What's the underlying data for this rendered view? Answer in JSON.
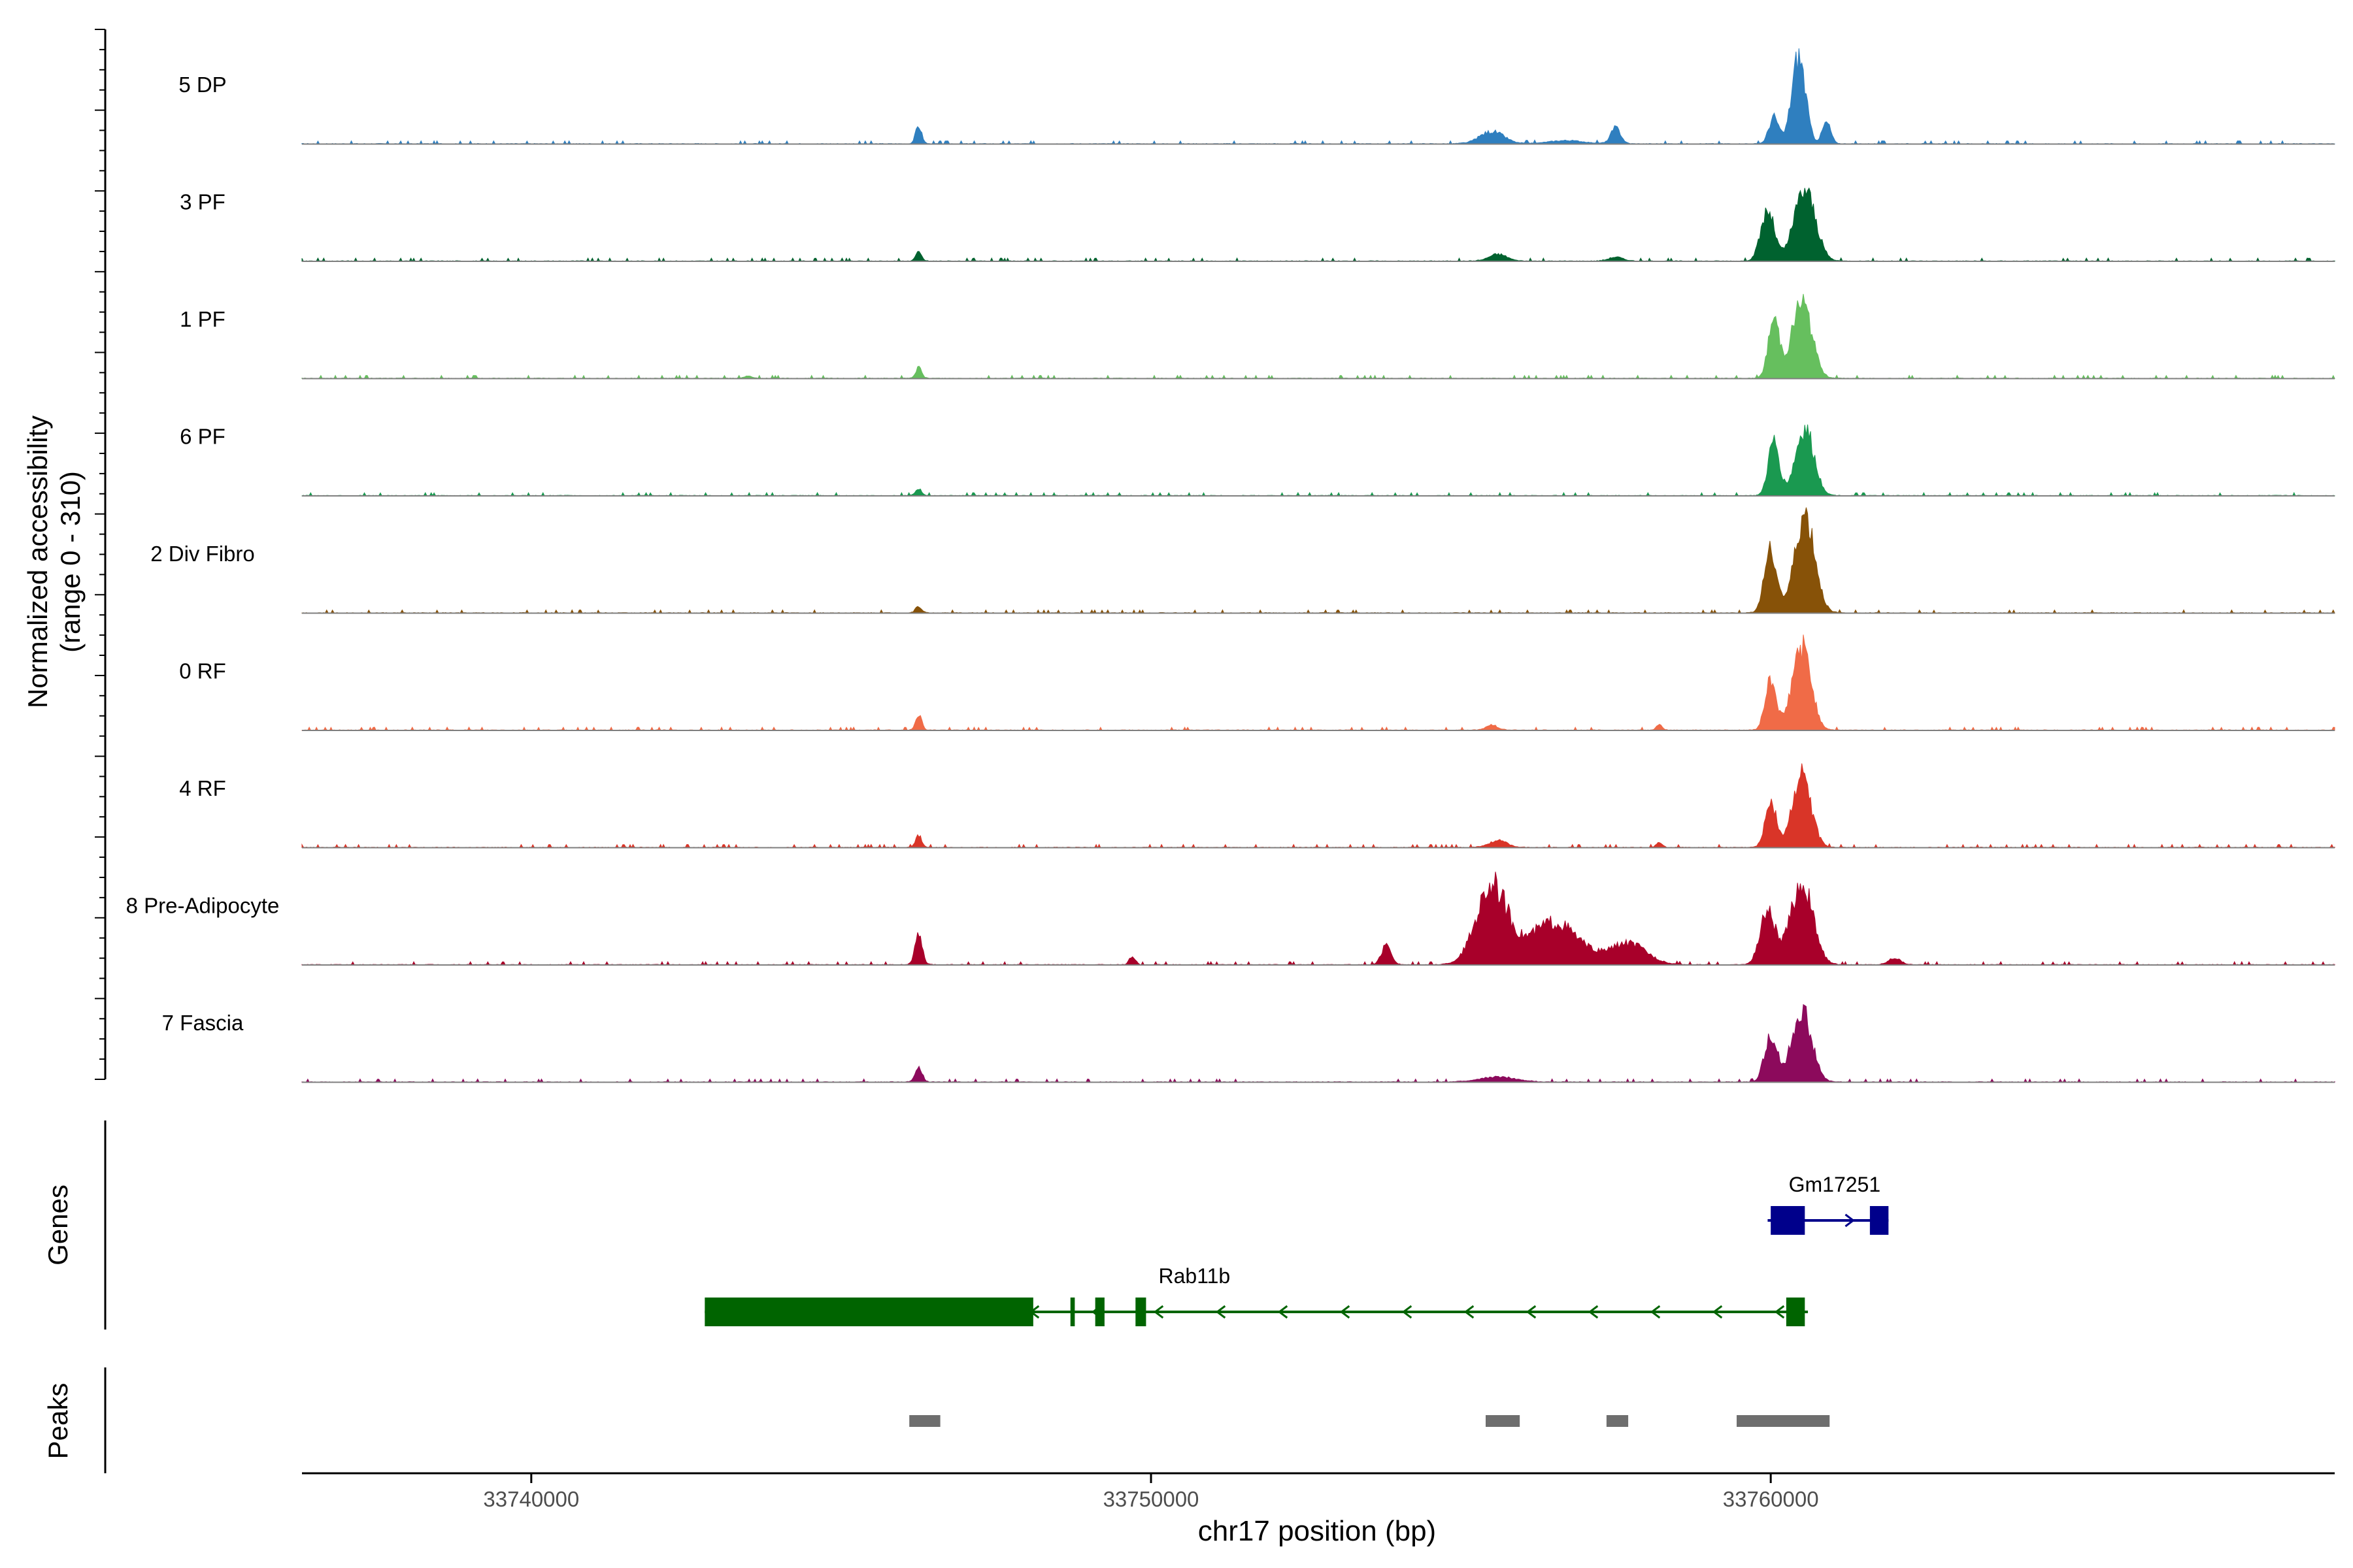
{
  "chart_data": {
    "type": "area",
    "title": "",
    "y_axis_label_line1": "Normalized accessibility",
    "y_axis_label_line2": "(range 0 - 310)",
    "ylim": [
      0,
      310
    ],
    "xlabel": "chr17 position (bp)",
    "xlim": [
      33736300,
      33769100
    ],
    "x_ticks": [
      33740000,
      33750000,
      33760000
    ],
    "x_tick_labels": [
      "33740000",
      "33750000",
      "33760000"
    ],
    "genes_label": "Genes",
    "peaks_label": "Peaks",
    "tracks": [
      {
        "name": "5 DP",
        "color": "#2f7fbf",
        "peaks": [
          [
            33746250,
            50,
            50
          ],
          [
            33755500,
            35,
            200
          ],
          [
            33756700,
            10,
            300
          ],
          [
            33757500,
            45,
            80
          ],
          [
            33760050,
            75,
            80
          ],
          [
            33760450,
            245,
            110
          ],
          [
            33760900,
            60,
            70
          ]
        ]
      },
      {
        "name": "3 PF",
        "color": "#00622f",
        "peaks": [
          [
            33746250,
            25,
            50
          ],
          [
            33755600,
            20,
            150
          ],
          [
            33757500,
            12,
            120
          ],
          [
            33759950,
            140,
            110
          ],
          [
            33760550,
            200,
            170
          ]
        ]
      },
      {
        "name": "1 PF",
        "color": "#66bf5e",
        "peaks": [
          [
            33746250,
            30,
            50
          ],
          [
            33743500,
            8,
            60
          ],
          [
            33760050,
            165,
            90
          ],
          [
            33760500,
            215,
            160
          ]
        ]
      },
      {
        "name": "6 PF",
        "color": "#1a9950",
        "peaks": [
          [
            33746250,
            20,
            50
          ],
          [
            33760050,
            150,
            90
          ],
          [
            33760550,
            185,
            150
          ]
        ]
      },
      {
        "name": "2 Div Fibro",
        "color": "#875208",
        "peaks": [
          [
            33746250,
            20,
            50
          ],
          [
            33760000,
            180,
            100
          ],
          [
            33760550,
            270,
            160
          ]
        ]
      },
      {
        "name": "0 RF",
        "color": "#f06b47",
        "peaks": [
          [
            33746250,
            45,
            50
          ],
          [
            33755500,
            15,
            100
          ],
          [
            33758200,
            15,
            50
          ],
          [
            33760000,
            140,
            90
          ],
          [
            33760500,
            235,
            150
          ]
        ]
      },
      {
        "name": "4 RF",
        "color": "#d93528",
        "peaks": [
          [
            33746250,
            35,
            50
          ],
          [
            33755600,
            20,
            150
          ],
          [
            33758200,
            15,
            50
          ],
          [
            33760000,
            130,
            90
          ],
          [
            33760500,
            200,
            150
          ]
        ]
      },
      {
        "name": "8 Pre-Adipocyte",
        "color": "#a8002a",
        "peaks": [
          [
            33746250,
            80,
            60
          ],
          [
            33749700,
            25,
            50
          ],
          [
            33753800,
            55,
            80
          ],
          [
            33755500,
            220,
            250
          ],
          [
            33756500,
            120,
            400
          ],
          [
            33757700,
            60,
            300
          ],
          [
            33759950,
            150,
            120
          ],
          [
            33760500,
            230,
            180
          ],
          [
            33762000,
            20,
            100
          ]
        ]
      },
      {
        "name": "7 Fascia",
        "color": "#8c0a5c",
        "peaks": [
          [
            33746250,
            40,
            60
          ],
          [
            33755600,
            15,
            300
          ],
          [
            33760000,
            135,
            100
          ],
          [
            33760500,
            200,
            160
          ]
        ]
      }
    ],
    "genes": [
      {
        "name": "Gm17251",
        "strand": "+",
        "start": 33759950,
        "end": 33761900,
        "exons": [
          [
            33760000,
            33760550
          ],
          [
            33761600,
            33761900
          ]
        ]
      },
      {
        "name": "Rab11b",
        "strand": "-",
        "start": 33742800,
        "end": 33760600,
        "exons": [
          [
            33742800,
            33748100
          ],
          [
            33748700,
            33748770
          ],
          [
            33749100,
            33749250
          ],
          [
            33749750,
            33749920
          ],
          [
            33760250,
            33760550
          ]
        ]
      }
    ],
    "peak_regions": [
      [
        33746100,
        33746600
      ],
      [
        33755400,
        33755950
      ],
      [
        33757350,
        33757700
      ],
      [
        33759450,
        33760950
      ]
    ]
  }
}
